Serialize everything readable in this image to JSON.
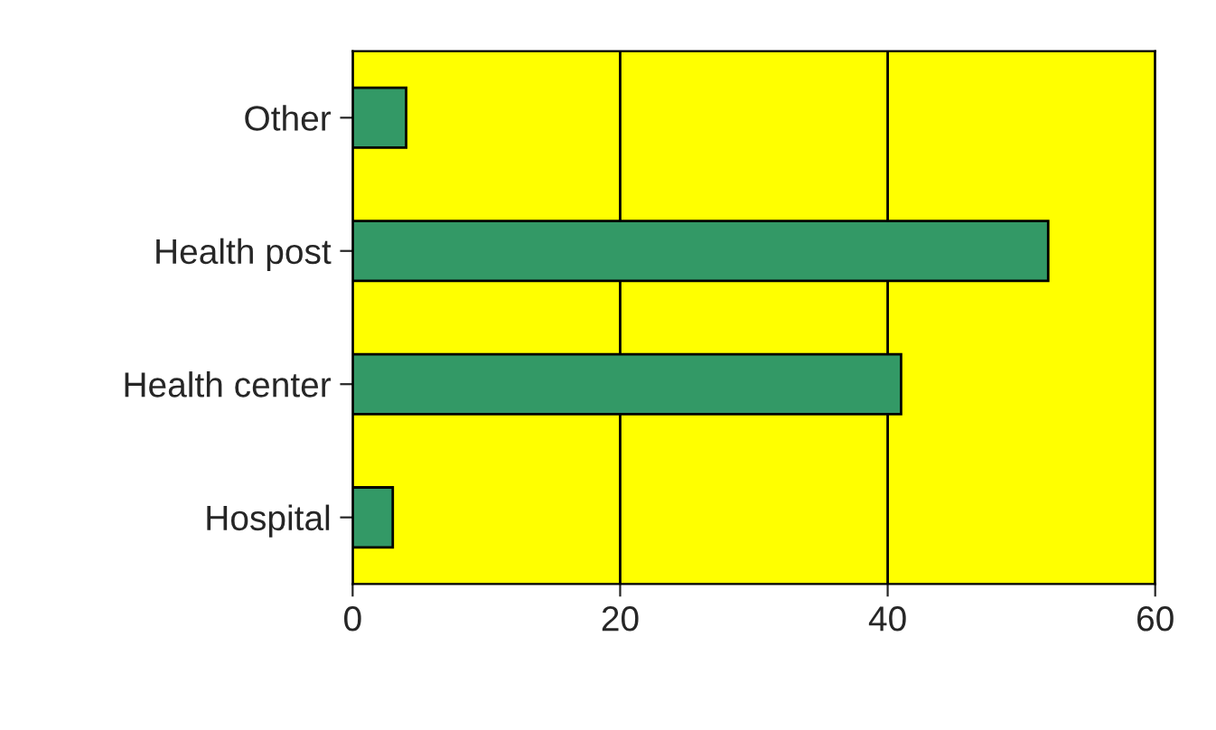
{
  "chart_data": {
    "type": "bar",
    "orientation": "horizontal",
    "categories": [
      "Other",
      "Health post",
      "Health center",
      "Hospital"
    ],
    "values": [
      4,
      52,
      41,
      3
    ],
    "color": "#339966",
    "xlim": [
      0,
      60
    ],
    "xticks": [
      0,
      20,
      40,
      60
    ],
    "grid": "x"
  }
}
